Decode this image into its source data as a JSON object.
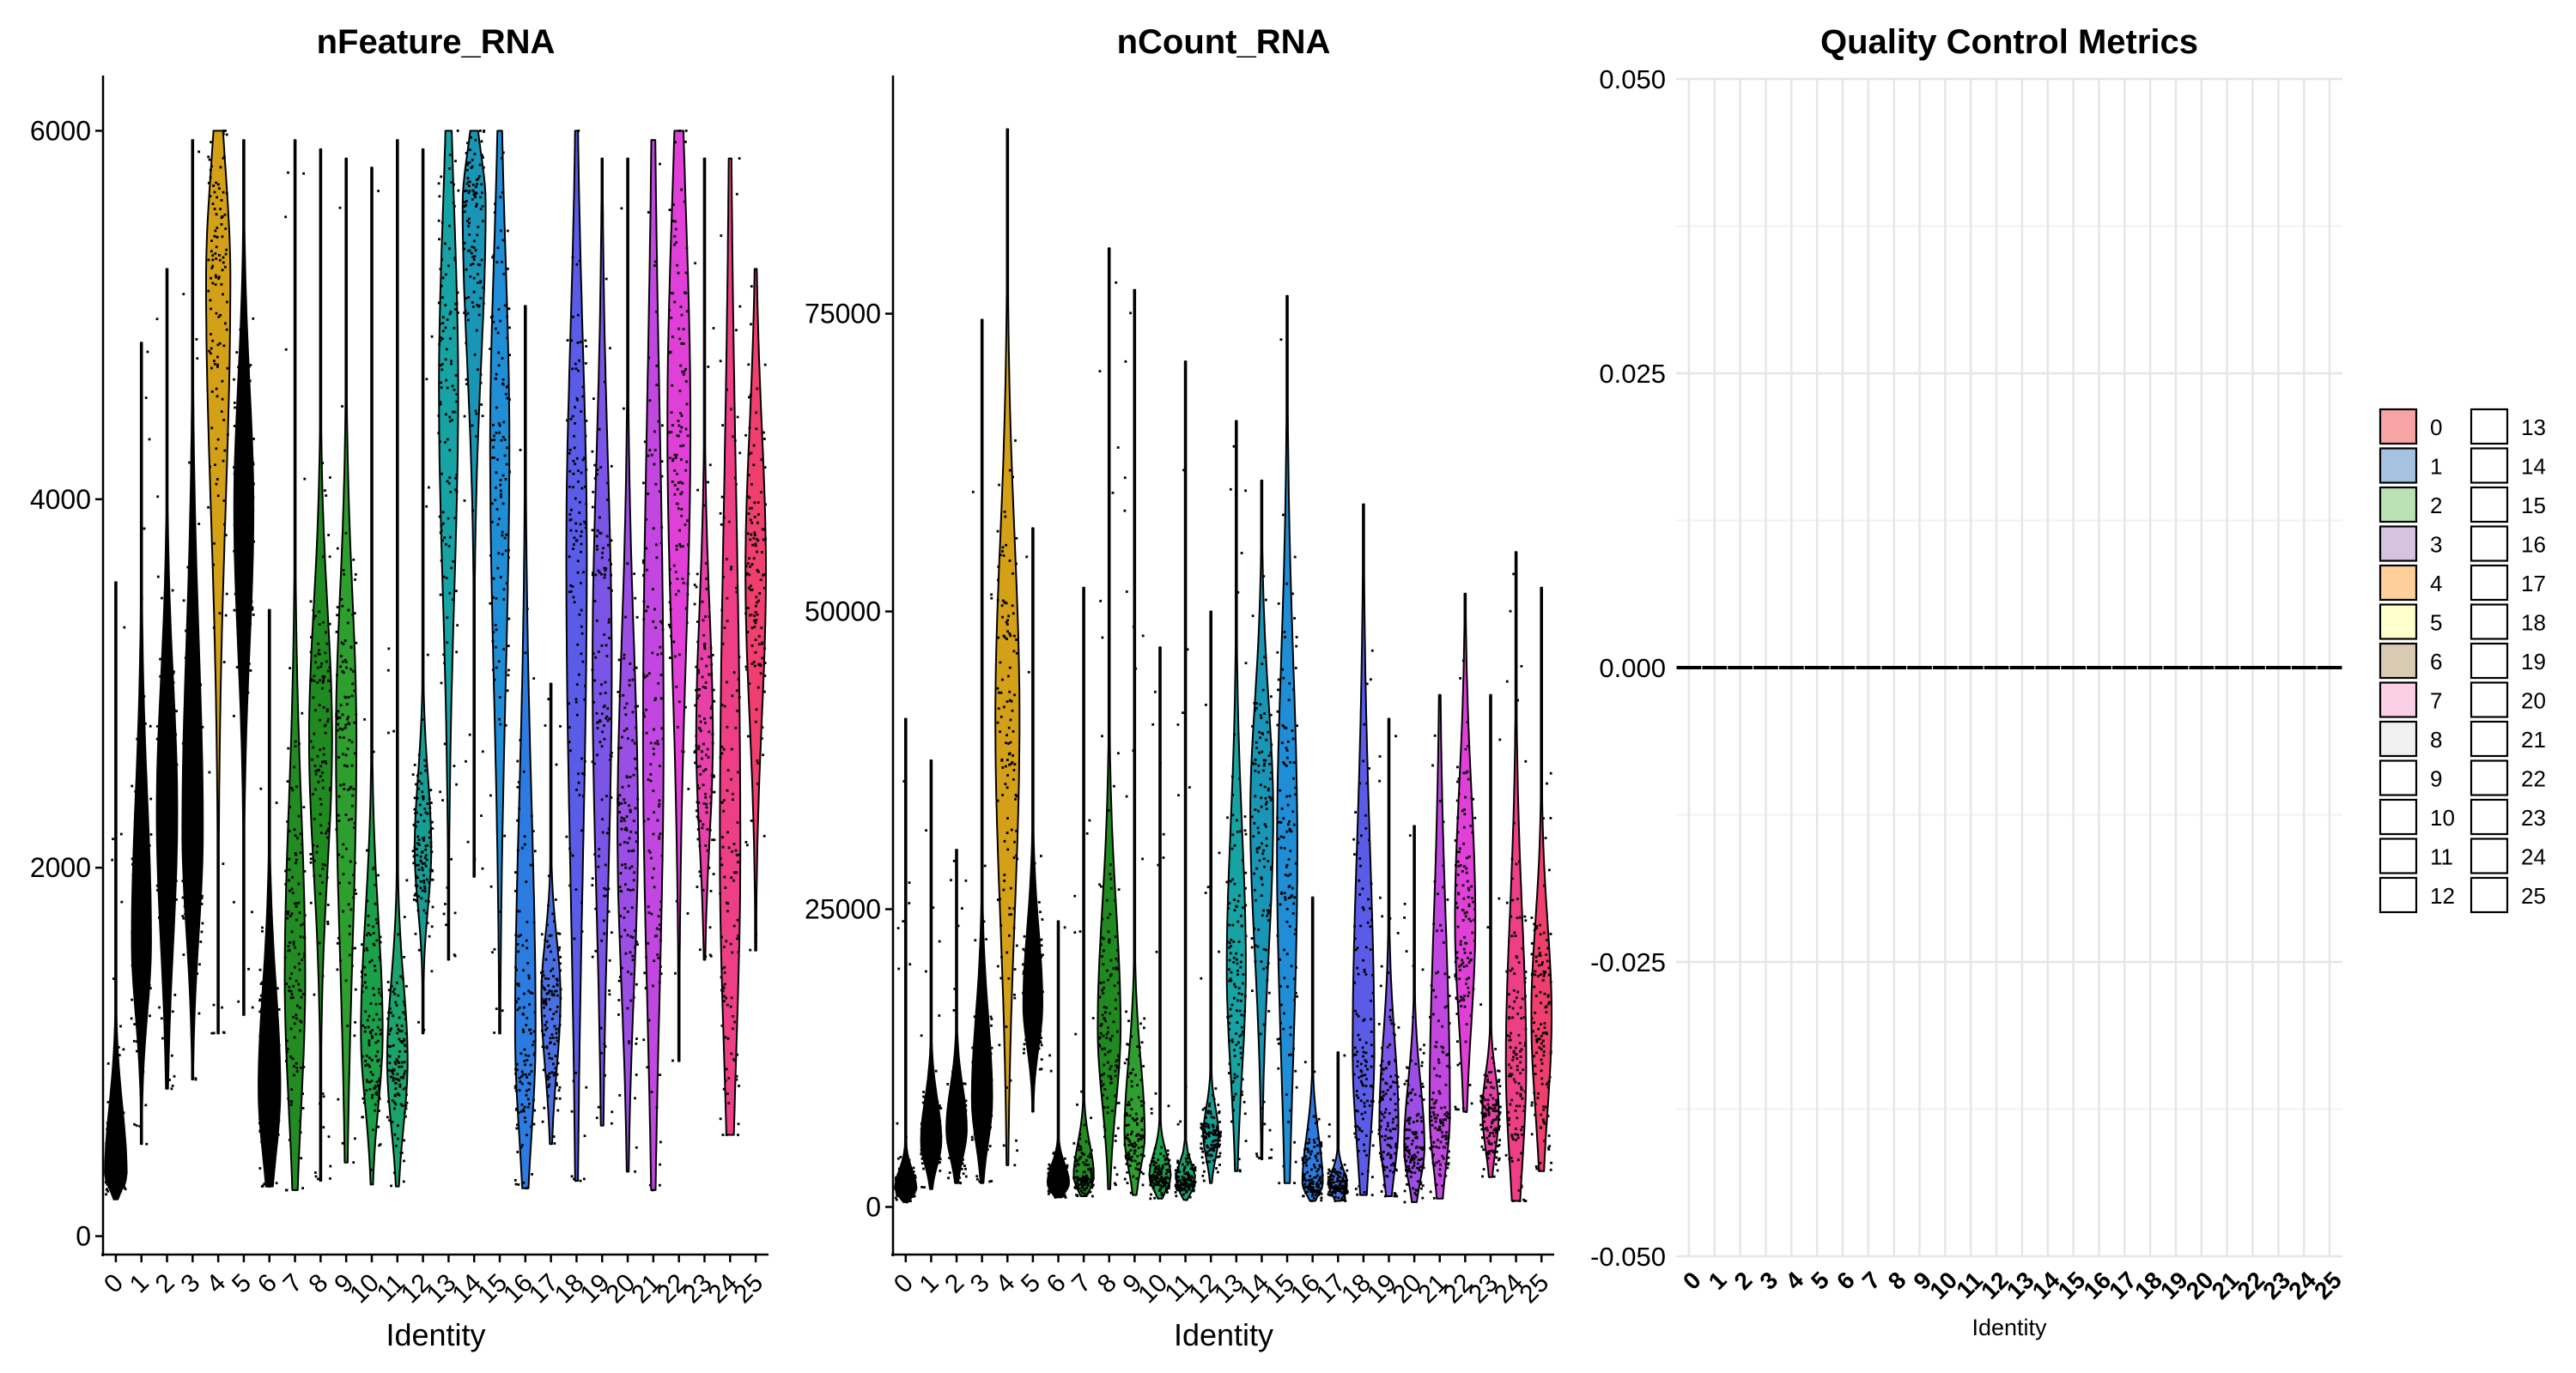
{
  "chart_data": [
    {
      "type": "violin",
      "title": "nFeature_RNA",
      "xlabel": "Identity",
      "ylabel": "",
      "categories": [
        "0",
        "1",
        "2",
        "3",
        "4",
        "5",
        "6",
        "7",
        "8",
        "9",
        "10",
        "11",
        "12",
        "13",
        "14",
        "15",
        "16",
        "17",
        "18",
        "19",
        "20",
        "21",
        "22",
        "23",
        "24",
        "25"
      ],
      "yticks": [
        0,
        2000,
        4000,
        6000
      ],
      "ylim": [
        -100,
        6300
      ],
      "series": [
        {
          "min": 200,
          "q10": 240,
          "q50": 330,
          "q90": 800,
          "max": 3550,
          "width": 0.85
        },
        {
          "min": 500,
          "q10": 1100,
          "q50": 1600,
          "q90": 2600,
          "max": 4850,
          "width": 0.75
        },
        {
          "min": 800,
          "q10": 1400,
          "q50": 2300,
          "q90": 3200,
          "max": 5250,
          "width": 0.8
        },
        {
          "min": 850,
          "q10": 1500,
          "q50": 2200,
          "q90": 3500,
          "max": 5950,
          "width": 0.8
        },
        {
          "min": 1100,
          "q10": 3600,
          "q50": 5200,
          "q90": 5950,
          "max": 6000,
          "width": 0.95
        },
        {
          "min": 1200,
          "q10": 3000,
          "q50": 3950,
          "q90": 4800,
          "max": 5950,
          "width": 0.75
        },
        {
          "min": 270,
          "q10": 350,
          "q50": 800,
          "q90": 1500,
          "max": 3400,
          "width": 0.85
        },
        {
          "min": 250,
          "q10": 500,
          "q50": 1400,
          "q90": 2600,
          "max": 5950,
          "width": 0.8
        },
        {
          "min": 300,
          "q10": 1800,
          "q50": 2700,
          "q90": 3600,
          "max": 5900,
          "width": 0.9
        },
        {
          "min": 400,
          "q10": 1200,
          "q50": 2700,
          "q90": 3700,
          "max": 5850,
          "width": 0.8
        },
        {
          "min": 280,
          "q10": 600,
          "q50": 1100,
          "q90": 1900,
          "max": 5800,
          "width": 0.85
        },
        {
          "min": 270,
          "q10": 500,
          "q50": 950,
          "q90": 1500,
          "max": 5950,
          "width": 0.8
        },
        {
          "min": 1100,
          "q10": 1700,
          "q50": 2100,
          "q90": 2600,
          "max": 5900,
          "width": 0.65
        },
        {
          "min": 1500,
          "q10": 3200,
          "q50": 4600,
          "q90": 5800,
          "max": 6000,
          "width": 0.75
        },
        {
          "min": 1950,
          "q10": 4500,
          "q50": 5600,
          "q90": 5950,
          "max": 6000,
          "width": 0.9
        },
        {
          "min": 1100,
          "q10": 2600,
          "q50": 4300,
          "q90": 5600,
          "max": 6000,
          "width": 0.75
        },
        {
          "min": 260,
          "q10": 400,
          "q50": 1100,
          "q90": 2700,
          "max": 5050,
          "width": 0.8
        },
        {
          "min": 500,
          "q10": 800,
          "q50": 1300,
          "q90": 1700,
          "max": 3000,
          "width": 0.75
        },
        {
          "min": 300,
          "q10": 1500,
          "q50": 3700,
          "q90": 5200,
          "max": 6000,
          "width": 0.8
        },
        {
          "min": 600,
          "q10": 1500,
          "q50": 3100,
          "q90": 4500,
          "max": 5850,
          "width": 0.75
        },
        {
          "min": 350,
          "q10": 1100,
          "q50": 2200,
          "q90": 3500,
          "max": 5850,
          "width": 0.8
        },
        {
          "min": 250,
          "q10": 900,
          "q50": 2700,
          "q90": 5000,
          "max": 5950,
          "width": 0.8
        },
        {
          "min": 950,
          "q10": 2800,
          "q50": 4400,
          "q90": 5900,
          "max": 6000,
          "width": 0.9
        },
        {
          "min": 1500,
          "q10": 2000,
          "q50": 2700,
          "q90": 3600,
          "max": 5850,
          "width": 0.65
        },
        {
          "min": 550,
          "q10": 700,
          "q50": 2100,
          "q90": 4500,
          "max": 5850,
          "width": 0.8
        },
        {
          "min": 1550,
          "q10": 2600,
          "q50": 3600,
          "q90": 4600,
          "max": 5250,
          "width": 0.8
        }
      ]
    },
    {
      "type": "violin",
      "title": "nCount_RNA",
      "xlabel": "Identity",
      "ylabel": "",
      "categories": [
        "0",
        "1",
        "2",
        "3",
        "4",
        "5",
        "6",
        "7",
        "8",
        "9",
        "10",
        "11",
        "12",
        "13",
        "14",
        "15",
        "16",
        "17",
        "18",
        "19",
        "20",
        "21",
        "22",
        "23",
        "24",
        "25"
      ],
      "yticks": [
        0,
        25000,
        50000,
        75000
      ],
      "ylim": [
        -4000,
        95000
      ],
      "series": [
        {
          "min": 400,
          "q10": 700,
          "q50": 1500,
          "q90": 3500,
          "max": 41000,
          "width": 0.85
        },
        {
          "min": 1500,
          "q10": 3000,
          "q50": 5500,
          "q90": 10000,
          "max": 37500,
          "width": 0.8
        },
        {
          "min": 2000,
          "q10": 3500,
          "q50": 6500,
          "q90": 11000,
          "max": 30000,
          "width": 0.8
        },
        {
          "min": 2000,
          "q10": 4500,
          "q50": 9000,
          "q90": 18000,
          "max": 74500,
          "width": 0.8
        },
        {
          "min": 3500,
          "q10": 20000,
          "q50": 41000,
          "q90": 60000,
          "max": 90500,
          "width": 0.95
        },
        {
          "min": 8000,
          "q10": 12500,
          "q50": 17000,
          "q90": 25000,
          "max": 57000,
          "width": 0.75
        },
        {
          "min": 800,
          "q10": 1000,
          "q50": 2000,
          "q90": 4000,
          "max": 24000,
          "width": 0.85
        },
        {
          "min": 900,
          "q10": 1200,
          "q50": 2500,
          "q90": 6000,
          "max": 52000,
          "width": 0.8
        },
        {
          "min": 1500,
          "q10": 7000,
          "q50": 15000,
          "q90": 28000,
          "max": 80500,
          "width": 0.9
        },
        {
          "min": 1000,
          "q10": 2500,
          "q50": 6000,
          "q90": 14000,
          "max": 77000,
          "width": 0.8
        },
        {
          "min": 700,
          "q10": 1200,
          "q50": 2500,
          "q90": 5000,
          "max": 47000,
          "width": 0.85
        },
        {
          "min": 600,
          "q10": 1100,
          "q50": 2200,
          "q90": 4000,
          "max": 71000,
          "width": 0.8
        },
        {
          "min": 2000,
          "q10": 3500,
          "q50": 6000,
          "q90": 9000,
          "max": 50000,
          "width": 0.6
        },
        {
          "min": 3000,
          "q10": 9000,
          "q50": 20000,
          "q90": 35000,
          "max": 66000,
          "width": 0.75
        },
        {
          "min": 4000,
          "q10": 18000,
          "q50": 33000,
          "q90": 45000,
          "max": 61000,
          "width": 0.9
        },
        {
          "min": 2000,
          "q10": 8000,
          "q50": 30000,
          "q90": 50000,
          "max": 76500,
          "width": 0.8
        },
        {
          "min": 500,
          "q10": 800,
          "q50": 2000,
          "q90": 7000,
          "max": 26000,
          "width": 0.8
        },
        {
          "min": 500,
          "q10": 700,
          "q50": 1800,
          "q90": 3500,
          "max": 13000,
          "width": 0.7
        },
        {
          "min": 1000,
          "q10": 3000,
          "q50": 13000,
          "q90": 35000,
          "max": 59000,
          "width": 0.85
        },
        {
          "min": 900,
          "q10": 2000,
          "q50": 7000,
          "q90": 16000,
          "max": 41000,
          "width": 0.75
        },
        {
          "min": 400,
          "q10": 1500,
          "q50": 5000,
          "q90": 12000,
          "max": 32000,
          "width": 0.8
        },
        {
          "min": 700,
          "q10": 2000,
          "q50": 8000,
          "q90": 28000,
          "max": 43000,
          "width": 0.8
        },
        {
          "min": 8000,
          "q10": 13000,
          "q50": 24000,
          "q90": 38000,
          "max": 51500,
          "width": 0.8
        },
        {
          "min": 2500,
          "q10": 4000,
          "q50": 8000,
          "q90": 12000,
          "max": 43000,
          "width": 0.65
        },
        {
          "min": 500,
          "q10": 1000,
          "q50": 12000,
          "q90": 28000,
          "max": 55000,
          "width": 0.8
        },
        {
          "min": 3000,
          "q10": 6000,
          "q50": 16000,
          "q90": 26000,
          "max": 52000,
          "width": 0.8
        }
      ]
    },
    {
      "type": "violin",
      "title": "Quality Control Metrics",
      "xlabel": "Identity",
      "ylabel": "",
      "categories": [
        "0",
        "1",
        "2",
        "3",
        "4",
        "5",
        "6",
        "7",
        "8",
        "9",
        "10",
        "11",
        "12",
        "13",
        "14",
        "15",
        "16",
        "17",
        "18",
        "19",
        "20",
        "21",
        "22",
        "23",
        "24",
        "25"
      ],
      "yticks": [
        -0.05,
        -0.025,
        0.0,
        0.025,
        0.05
      ],
      "ytick_labels": [
        "-0.050",
        "-0.025",
        "0.000",
        "0.025",
        "0.050"
      ],
      "ylim": [
        -0.05,
        0.05
      ],
      "grid": true,
      "values": [
        0,
        0,
        0,
        0,
        0,
        0,
        0,
        0,
        0,
        0,
        0,
        0,
        0,
        0,
        0,
        0,
        0,
        0,
        0,
        0,
        0,
        0,
        0,
        0,
        0,
        0
      ],
      "legend": {
        "placement": "right",
        "entries": [
          "0",
          "1",
          "2",
          "3",
          "4",
          "5",
          "6",
          "7",
          "8",
          "9",
          "10",
          "11",
          "12",
          "13",
          "14",
          "15",
          "16",
          "17",
          "18",
          "19",
          "20",
          "21",
          "22",
          "23",
          "24",
          "25"
        ],
        "colors": [
          "#f8a3a6",
          "#a5c3e0",
          "#b9e2b5",
          "#d4c3e1",
          "#fdd09b",
          "#ffffcc",
          "#d8cbb2",
          "#fbd0e6",
          "#f0f0f0",
          "#ffffff",
          "#ffffff",
          "#ffffff",
          "#ffffff",
          "#ffffff",
          "#ffffff",
          "#ffffff",
          "#ffffff",
          "#ffffff",
          "#ffffff",
          "#ffffff",
          "#ffffff",
          "#ffffff",
          "#ffffff",
          "#ffffff",
          "#ffffff",
          "#ffffff"
        ]
      }
    }
  ],
  "colors": {
    "violin_fills": [
      "#000000",
      "#000000",
      "#000000",
      "#000000",
      "#d4a017",
      "#000000",
      "#000000",
      "#228b22",
      "#1f8a1f",
      "#2e9e2e",
      "#1ba04a",
      "#1aa36b",
      "#179e94",
      "#17a3a3",
      "#1996b5",
      "#1f8ed6",
      "#2c7be0",
      "#4a6fe0",
      "#5a5ce8",
      "#7a55e6",
      "#9a4ee4",
      "#c247e0",
      "#e040d8",
      "#e83fa8",
      "#ee3f86",
      "#f03e6e"
    ]
  }
}
